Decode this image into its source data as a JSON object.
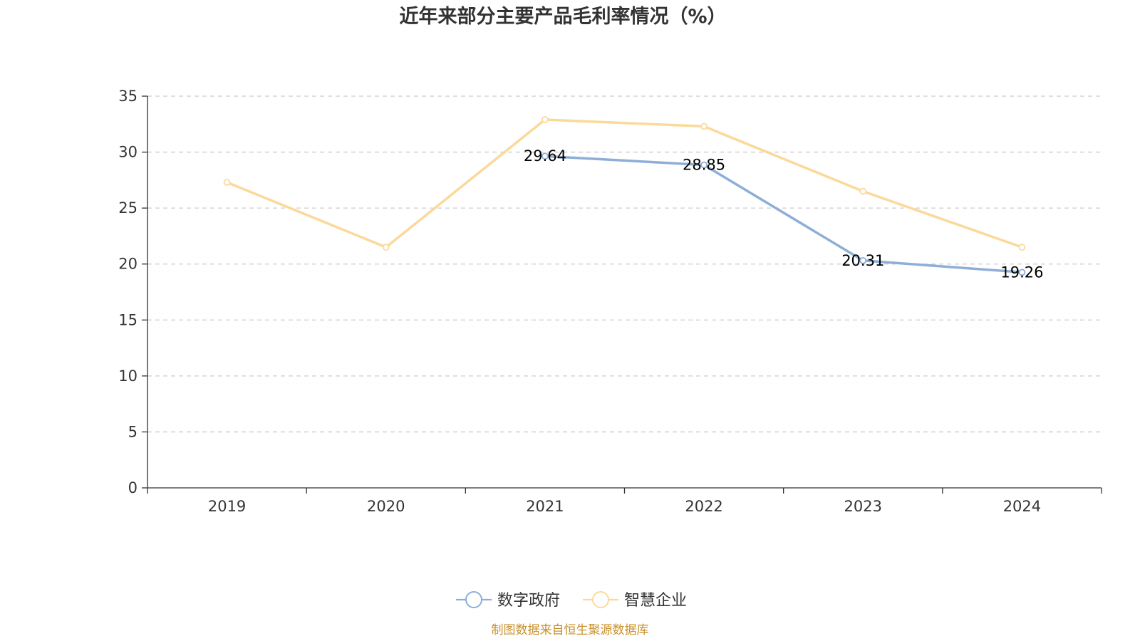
{
  "chart_data": {
    "type": "line",
    "title": "近年来部分主要产品毛利率情况（%）",
    "categories": [
      "2019",
      "2020",
      "2021",
      "2022",
      "2023",
      "2024"
    ],
    "ylim": [
      0,
      35
    ],
    "yticks": [
      0,
      5,
      10,
      15,
      20,
      25,
      30,
      35
    ],
    "grid": true,
    "legend_position": "bottom-center",
    "series": [
      {
        "name": "数字政府",
        "color": "#8eaed8",
        "values": [
          null,
          null,
          29.64,
          28.85,
          20.31,
          19.26
        ],
        "labels": [
          null,
          null,
          "29.64",
          "28.85",
          "20.31",
          "19.26"
        ]
      },
      {
        "name": "智慧企业",
        "color": "#fbd99a",
        "values": [
          27.3,
          21.5,
          32.9,
          32.3,
          26.5,
          21.5
        ],
        "labels": [
          null,
          null,
          null,
          null,
          null,
          null
        ]
      }
    ]
  },
  "source_note": "制图数据来自恒生聚源数据库"
}
